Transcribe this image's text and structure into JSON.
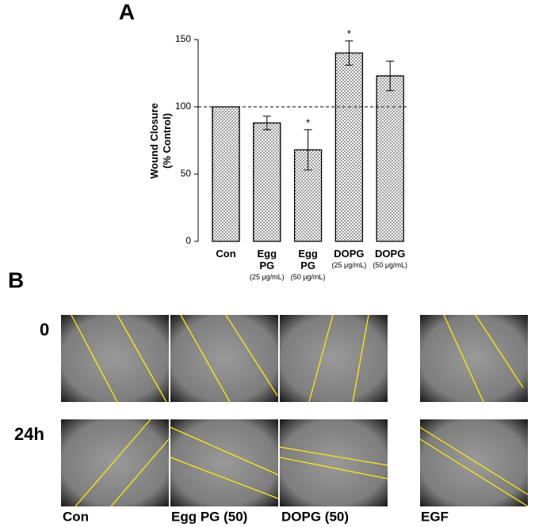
{
  "panel_labels": [
    "A",
    "B"
  ],
  "chart_data": {
    "type": "bar",
    "ylabel": [
      "Wound Closure",
      "(% Control)"
    ],
    "categories": [
      [
        "Con"
      ],
      [
        "Egg",
        "PG",
        "(25 μg/mL)"
      ],
      [
        "Egg",
        "PG",
        "(50 μg/mL)"
      ],
      [
        "DOPG",
        "(25 μg/mL)"
      ],
      [
        "DOPG",
        "(50 μg/mL)"
      ]
    ],
    "values": [
      100,
      88,
      68,
      140,
      123
    ],
    "errors": [
      0,
      5,
      15,
      9,
      11
    ],
    "significance": [
      null,
      null,
      "*",
      "*",
      null
    ],
    "reference_line": 100,
    "ylim": [
      0,
      150
    ],
    "yticks": [
      0,
      50,
      100,
      150
    ],
    "color": "#000000"
  },
  "panel_b": {
    "rows": [
      "0",
      "24h"
    ],
    "columns": [
      "Con",
      "Egg PG (50)",
      "DOPG (50)",
      "EGF"
    ]
  }
}
